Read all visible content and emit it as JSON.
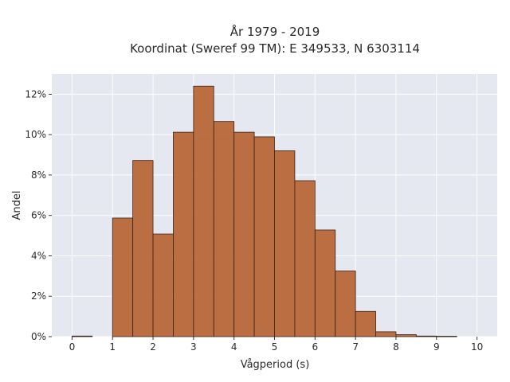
{
  "chart_data": {
    "type": "bar",
    "title_lines": [
      "År 1979 - 2019",
      "Koordinat (Sweref 99 TM): E 349533, N 6303114"
    ],
    "xlabel": "Vågperiod (s)",
    "ylabel": "Andel",
    "xlim": [
      -0.5,
      10.5
    ],
    "ylim": [
      0,
      0.13
    ],
    "x_ticks": [
      0,
      1,
      2,
      3,
      4,
      5,
      6,
      7,
      8,
      9,
      10
    ],
    "y_ticks": [
      0,
      0.02,
      0.04,
      0.06,
      0.08,
      0.1,
      0.12
    ],
    "y_tick_labels": [
      "0%",
      "2%",
      "4%",
      "6%",
      "8%",
      "10%",
      "12%"
    ],
    "bin_width": 0.5,
    "bins": [
      {
        "start": 0.0,
        "value": 0.0003
      },
      {
        "start": 0.5,
        "value": 0.0
      },
      {
        "start": 1.0,
        "value": 0.0587
      },
      {
        "start": 1.5,
        "value": 0.0872
      },
      {
        "start": 2.0,
        "value": 0.0508
      },
      {
        "start": 2.5,
        "value": 0.1012
      },
      {
        "start": 3.0,
        "value": 0.124
      },
      {
        "start": 3.5,
        "value": 0.1065
      },
      {
        "start": 4.0,
        "value": 0.1012
      },
      {
        "start": 4.5,
        "value": 0.0989
      },
      {
        "start": 5.0,
        "value": 0.092
      },
      {
        "start": 5.5,
        "value": 0.0772
      },
      {
        "start": 6.0,
        "value": 0.0528
      },
      {
        "start": 6.5,
        "value": 0.0325
      },
      {
        "start": 7.0,
        "value": 0.0125
      },
      {
        "start": 7.5,
        "value": 0.0024
      },
      {
        "start": 8.0,
        "value": 0.001
      },
      {
        "start": 8.5,
        "value": 0.0003
      },
      {
        "start": 9.0,
        "value": 0.0002
      }
    ],
    "bar_color": "#b5602f",
    "bar_edge_color": "#3b2418",
    "plot_background": "#e5e7f1",
    "grid": true,
    "grid_color": "#ffffff"
  }
}
